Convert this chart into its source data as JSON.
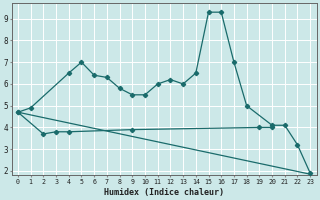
{
  "xlabel": "Humidex (Indice chaleur)",
  "bg_color": "#cce8e8",
  "grid_color": "#ffffff",
  "line_color": "#1a6b6b",
  "curve1_x": [
    0,
    1,
    4,
    5,
    6,
    7,
    8,
    9,
    10,
    11,
    12,
    13,
    14,
    15,
    16,
    17,
    18,
    20,
    21,
    22,
    23
  ],
  "curve1_y": [
    4.7,
    4.9,
    6.5,
    7.0,
    6.4,
    6.3,
    5.8,
    5.5,
    5.5,
    6.0,
    6.2,
    6.0,
    6.5,
    9.3,
    9.3,
    7.0,
    5.0,
    4.1,
    4.1,
    3.2,
    1.9
  ],
  "curve2_x": [
    0,
    2,
    3,
    4,
    9,
    19,
    20
  ],
  "curve2_y": [
    4.7,
    3.7,
    3.8,
    3.8,
    3.9,
    4.0,
    4.0
  ],
  "curve3_x": [
    0,
    23
  ],
  "curve3_y": [
    4.7,
    1.85
  ],
  "ylim": [
    1.8,
    9.7
  ],
  "xlim": [
    -0.5,
    23.5
  ],
  "yticks": [
    2,
    3,
    4,
    5,
    6,
    7,
    8,
    9
  ],
  "xticks": [
    0,
    1,
    2,
    3,
    4,
    5,
    6,
    7,
    8,
    9,
    10,
    11,
    12,
    13,
    14,
    15,
    16,
    17,
    18,
    19,
    20,
    21,
    22,
    23
  ]
}
